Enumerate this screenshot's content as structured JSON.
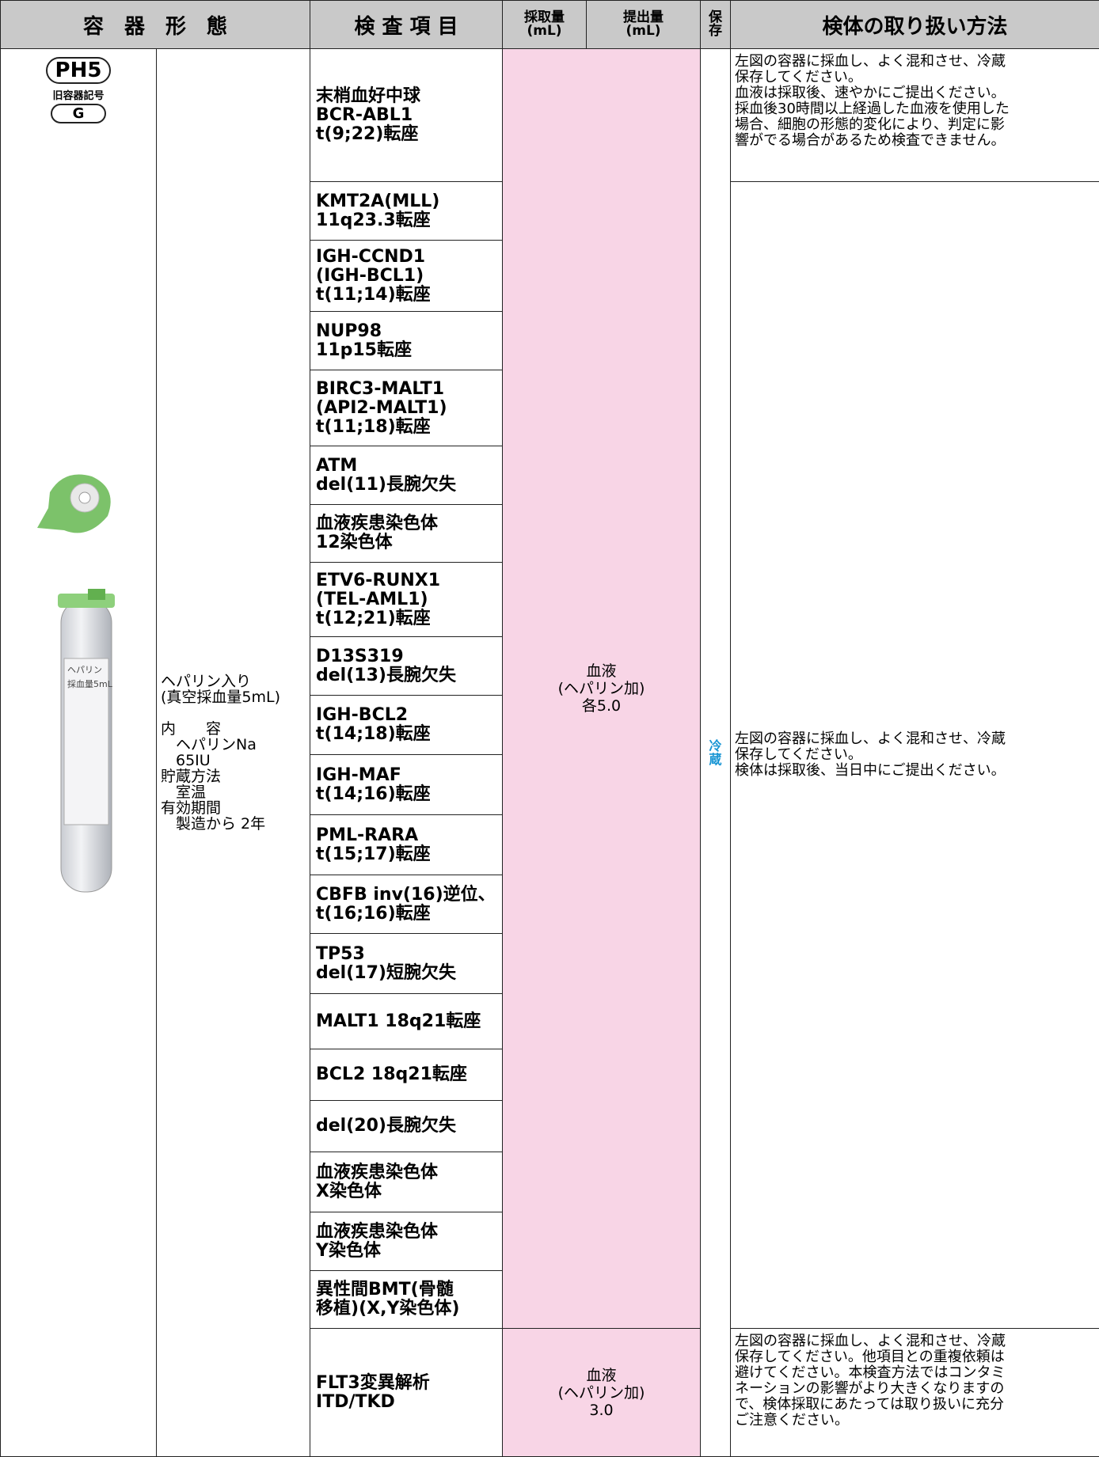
{
  "header": {
    "container_form": "容　器　形　態",
    "test_item": "検 査 項 目",
    "collect_volume": [
      "採取量",
      "(mL)"
    ],
    "submit_volume": [
      "提出量",
      "(mL)"
    ],
    "storage": [
      "保",
      "存"
    ],
    "handling": "検体の取り扱い方法"
  },
  "container": {
    "code": "PH5",
    "old_label": "旧容器記号",
    "old_code": "G",
    "tube_labels": [
      "ヘパリン",
      "採血量5mL"
    ],
    "description": [
      "ヘパリン入り",
      "(真空採血量5mL)",
      "",
      "内　　容",
      "　ヘパリンNa",
      "　65IU",
      "貯蔵方法",
      "　室温",
      "有効期間",
      "　製造から 2年"
    ]
  },
  "tests": [
    [
      "末梢血好中球",
      "BCR-ABL1",
      "t(9;22)転座"
    ],
    [
      "KMT2A(MLL)",
      "11q23.3転座"
    ],
    [
      "IGH-CCND1",
      "(IGH-BCL1)",
      "t(11;14)転座"
    ],
    [
      "NUP98",
      "11p15転座"
    ],
    [
      "BIRC3-MALT1",
      "(API2-MALT1)",
      "t(11;18)転座"
    ],
    [
      "ATM",
      "del(11)長腕欠失"
    ],
    [
      "血液疾患染色体",
      "12染色体"
    ],
    [
      "ETV6-RUNX1",
      "(TEL-AML1)",
      "t(12;21)転座"
    ],
    [
      "D13S319",
      "del(13)長腕欠失"
    ],
    [
      "IGH-BCL2",
      "t(14;18)転座"
    ],
    [
      "IGH-MAF",
      "t(14;16)転座"
    ],
    [
      "PML-RARA",
      "t(15;17)転座"
    ],
    [
      "CBFB inv(16)逆位、",
      "t(16;16)転座"
    ],
    [
      "TP53",
      "del(17)短腕欠失"
    ],
    [
      "MALT1 18q21転座"
    ],
    [
      "BCL2 18q21転座"
    ],
    [
      "del(20)長腕欠失"
    ],
    [
      "血液疾患染色体",
      "X染色体"
    ],
    [
      "血液疾患染色体",
      "Y染色体"
    ],
    [
      "異性間BMT(骨髄",
      "移植)(X,Y染色体)"
    ],
    [
      "FLT3変異解析",
      "ITD/TKD"
    ]
  ],
  "specimens": [
    [
      "血液",
      "(ヘパリン加)",
      "各5.0"
    ],
    [
      "血液",
      "(ヘパリン加)",
      "3.0"
    ]
  ],
  "storage": [
    "冷",
    "蔵"
  ],
  "handling": [
    [
      "左図の容器に採血し、よく混和させ、冷蔵",
      "保存してください。",
      "血液は採取後、速やかにご提出ください。",
      "採血後30時間以上経過した血液を使用した",
      "場合、細胞の形態的変化により、判定に影",
      "響がでる場合があるため検査できません。"
    ],
    [
      "左図の容器に採血し、よく混和させ、冷蔵",
      "保存してください。",
      "検体は採取後、当日中にご提出ください。"
    ],
    [
      "左図の容器に採血し、よく混和させ、冷蔵",
      "保存してください。他項目との重複依頼は",
      "避けてください。本検査方法ではコンタミ",
      "ネーションの影響がより大きくなりますの",
      "で、検体採取にあたっては取り扱いに充分",
      "ご注意ください。"
    ]
  ]
}
